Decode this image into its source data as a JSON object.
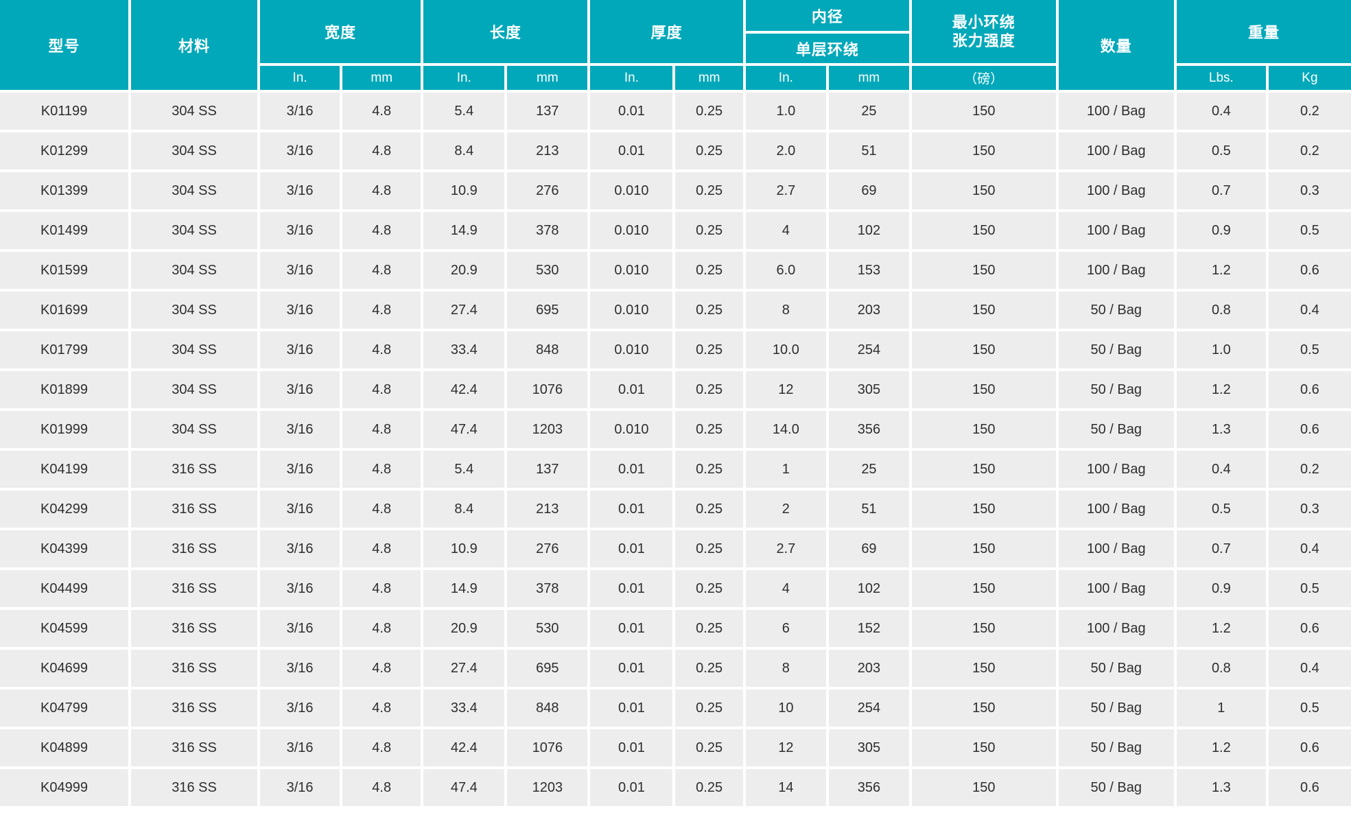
{
  "colors": {
    "header_bg": "#00a8ba",
    "header_text": "#ffffff",
    "row_bg": "#ededed",
    "grid_line": "#ffffff",
    "cell_text": "#2e2e2e"
  },
  "table": {
    "header": {
      "model": "型号",
      "material": "材料",
      "width": "宽度",
      "length": "长度",
      "thickness": "厚度",
      "inner_diameter": "内径",
      "single_wrap": "单层环绕",
      "min_strength_line1": "最小环绕",
      "min_strength_line2": "张力强度",
      "strength_unit": "（磅）",
      "quantity": "数量",
      "weight": "重量",
      "unit_in": "In.",
      "unit_mm": "mm",
      "unit_lbs": "Lbs.",
      "unit_kg": "Kg"
    },
    "rows": [
      [
        "K01199",
        "304 SS",
        "3/16",
        "4.8",
        "5.4",
        "137",
        "0.01",
        "0.25",
        "1.0",
        "25",
        "150",
        "100 / Bag",
        "0.4",
        "0.2"
      ],
      [
        "K01299",
        "304 SS",
        "3/16",
        "4.8",
        "8.4",
        "213",
        "0.01",
        "0.25",
        "2.0",
        "51",
        "150",
        "100 / Bag",
        "0.5",
        "0.2"
      ],
      [
        "K01399",
        "304 SS",
        "3/16",
        "4.8",
        "10.9",
        "276",
        "0.010",
        "0.25",
        "2.7",
        "69",
        "150",
        "100 / Bag",
        "0.7",
        "0.3"
      ],
      [
        "K01499",
        "304 SS",
        "3/16",
        "4.8",
        "14.9",
        "378",
        "0.010",
        "0.25",
        "4",
        "102",
        "150",
        "100 / Bag",
        "0.9",
        "0.5"
      ],
      [
        "K01599",
        "304 SS",
        "3/16",
        "4.8",
        "20.9",
        "530",
        "0.010",
        "0.25",
        "6.0",
        "153",
        "150",
        "100 / Bag",
        "1.2",
        "0.6"
      ],
      [
        "K01699",
        "304 SS",
        "3/16",
        "4.8",
        "27.4",
        "695",
        "0.010",
        "0.25",
        "8",
        "203",
        "150",
        "50 / Bag",
        "0.8",
        "0.4"
      ],
      [
        "K01799",
        "304 SS",
        "3/16",
        "4.8",
        "33.4",
        "848",
        "0.010",
        "0.25",
        "10.0",
        "254",
        "150",
        "50 / Bag",
        "1.0",
        "0.5"
      ],
      [
        "K01899",
        "304 SS",
        "3/16",
        "4.8",
        "42.4",
        "1076",
        "0.01",
        "0.25",
        "12",
        "305",
        "150",
        "50 / Bag",
        "1.2",
        "0.6"
      ],
      [
        "K01999",
        "304 SS",
        "3/16",
        "4.8",
        "47.4",
        "1203",
        "0.010",
        "0.25",
        "14.0",
        "356",
        "150",
        "50 / Bag",
        "1.3",
        "0.6"
      ],
      [
        "K04199",
        "316 SS",
        "3/16",
        "4.8",
        "5.4",
        "137",
        "0.01",
        "0.25",
        "1",
        "25",
        "150",
        "100 / Bag",
        "0.4",
        "0.2"
      ],
      [
        "K04299",
        "316 SS",
        "3/16",
        "4.8",
        "8.4",
        "213",
        "0.01",
        "0.25",
        "2",
        "51",
        "150",
        "100 / Bag",
        "0.5",
        "0.3"
      ],
      [
        "K04399",
        "316 SS",
        "3/16",
        "4.8",
        "10.9",
        "276",
        "0.01",
        "0.25",
        "2.7",
        "69",
        "150",
        "100 / Bag",
        "0.7",
        "0.4"
      ],
      [
        "K04499",
        "316 SS",
        "3/16",
        "4.8",
        "14.9",
        "378",
        "0.01",
        "0.25",
        "4",
        "102",
        "150",
        "100 / Bag",
        "0.9",
        "0.5"
      ],
      [
        "K04599",
        "316 SS",
        "3/16",
        "4.8",
        "20.9",
        "530",
        "0.01",
        "0.25",
        "6",
        "152",
        "150",
        "100 / Bag",
        "1.2",
        "0.6"
      ],
      [
        "K04699",
        "316 SS",
        "3/16",
        "4.8",
        "27.4",
        "695",
        "0.01",
        "0.25",
        "8",
        "203",
        "150",
        "50 / Bag",
        "0.8",
        "0.4"
      ],
      [
        "K04799",
        "316 SS",
        "3/16",
        "4.8",
        "33.4",
        "848",
        "0.01",
        "0.25",
        "10",
        "254",
        "150",
        "50 / Bag",
        "1",
        "0.5"
      ],
      [
        "K04899",
        "316 SS",
        "3/16",
        "4.8",
        "42.4",
        "1076",
        "0.01",
        "0.25",
        "12",
        "305",
        "150",
        "50 / Bag",
        "1.2",
        "0.6"
      ],
      [
        "K04999",
        "316 SS",
        "3/16",
        "4.8",
        "47.4",
        "1203",
        "0.01",
        "0.25",
        "14",
        "356",
        "150",
        "50 / Bag",
        "1.3",
        "0.6"
      ]
    ]
  }
}
